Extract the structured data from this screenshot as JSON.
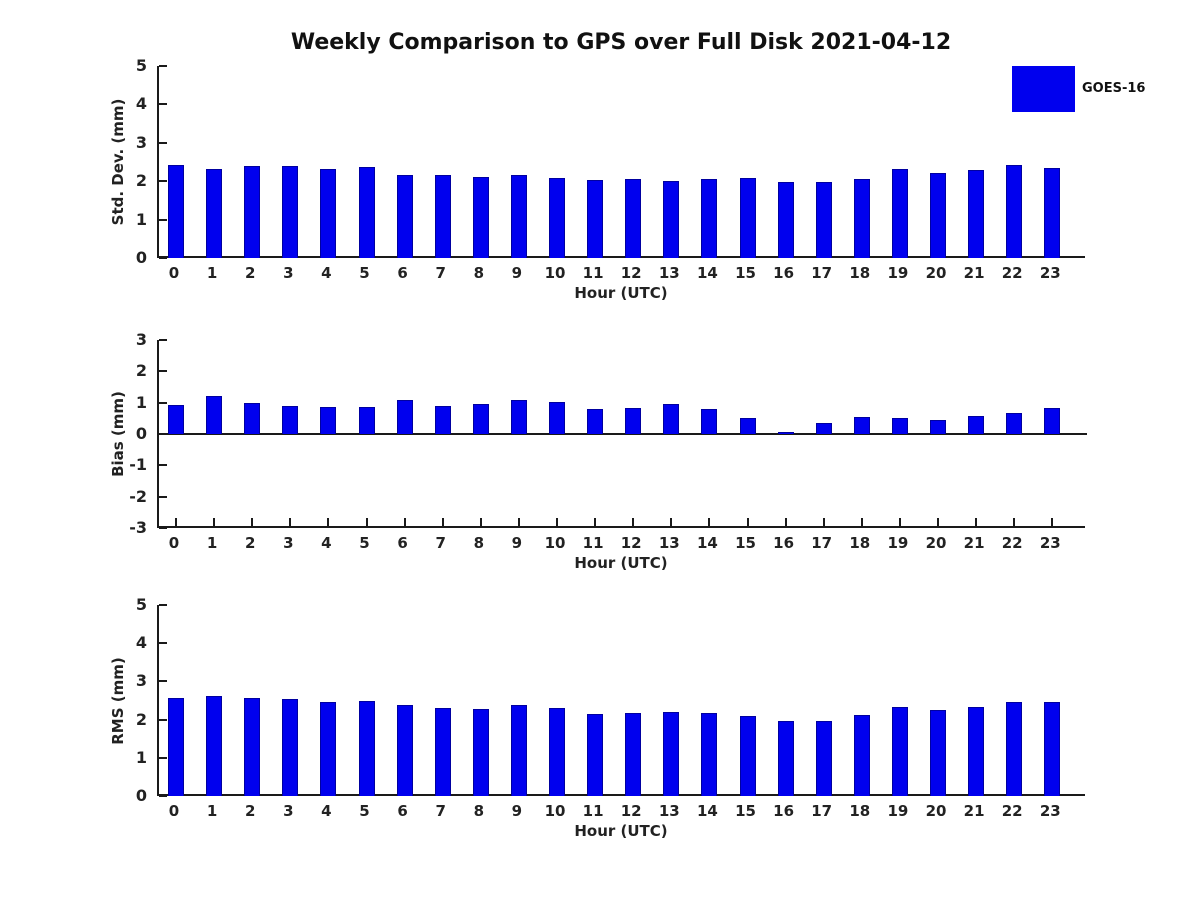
{
  "title": "Weekly Comparison to GPS over Full Disk 2021-04-12",
  "legend": {
    "label": "GOES-16"
  },
  "colors": {
    "bar": "#0000EE",
    "bar_edge": "#0000A0",
    "axis": "#1a1a1a",
    "text": "#222222",
    "background": "#ffffff"
  },
  "chart_data": [
    {
      "type": "bar",
      "name": "std-dev",
      "ylabel": "Std. Dev. (mm)",
      "xlabel": "Hour (UTC)",
      "ylim": [
        0,
        5
      ],
      "yticks": [
        0,
        1,
        2,
        3,
        4,
        5
      ],
      "grid": false,
      "legend_entries": [
        "GOES-16"
      ],
      "legend_position": "top-right",
      "categories": [
        "0",
        "1",
        "2",
        "3",
        "4",
        "5",
        "6",
        "7",
        "8",
        "9",
        "10",
        "11",
        "12",
        "13",
        "14",
        "15",
        "16",
        "17",
        "18",
        "19",
        "20",
        "21",
        "22",
        "23"
      ],
      "values": [
        2.41,
        2.31,
        2.39,
        2.39,
        2.33,
        2.36,
        2.15,
        2.15,
        2.1,
        2.15,
        2.08,
        2.03,
        2.05,
        2.01,
        2.06,
        2.08,
        1.98,
        1.97,
        2.07,
        2.31,
        2.22,
        2.29,
        2.43,
        2.34
      ]
    },
    {
      "type": "bar",
      "name": "bias",
      "ylabel": "Bias (mm)",
      "xlabel": "Hour (UTC)",
      "ylim": [
        -3,
        3
      ],
      "yticks": [
        -3,
        -2,
        -1,
        0,
        1,
        2,
        3
      ],
      "grid": false,
      "categories": [
        "0",
        "1",
        "2",
        "3",
        "4",
        "5",
        "6",
        "7",
        "8",
        "9",
        "10",
        "11",
        "12",
        "13",
        "14",
        "15",
        "16",
        "17",
        "18",
        "19",
        "20",
        "21",
        "22",
        "23"
      ],
      "values": [
        0.92,
        1.2,
        0.98,
        0.9,
        0.86,
        0.86,
        1.07,
        0.89,
        0.95,
        1.08,
        1.03,
        0.8,
        0.84,
        0.95,
        0.79,
        0.52,
        0.05,
        0.36,
        0.53,
        0.5,
        0.46,
        0.58,
        0.68,
        0.83
      ]
    },
    {
      "type": "bar",
      "name": "rms",
      "ylabel": "RMS (mm)",
      "xlabel": "Hour (UTC)",
      "ylim": [
        0,
        5
      ],
      "yticks": [
        0,
        1,
        2,
        3,
        4,
        5
      ],
      "grid": false,
      "categories": [
        "0",
        "1",
        "2",
        "3",
        "4",
        "5",
        "6",
        "7",
        "8",
        "9",
        "10",
        "11",
        "12",
        "13",
        "14",
        "15",
        "16",
        "17",
        "18",
        "19",
        "20",
        "21",
        "22",
        "23"
      ],
      "values": [
        2.57,
        2.61,
        2.57,
        2.54,
        2.46,
        2.49,
        2.38,
        2.31,
        2.28,
        2.38,
        2.3,
        2.15,
        2.18,
        2.19,
        2.18,
        2.1,
        1.97,
        1.97,
        2.12,
        2.33,
        2.25,
        2.32,
        2.47,
        2.46
      ]
    }
  ]
}
